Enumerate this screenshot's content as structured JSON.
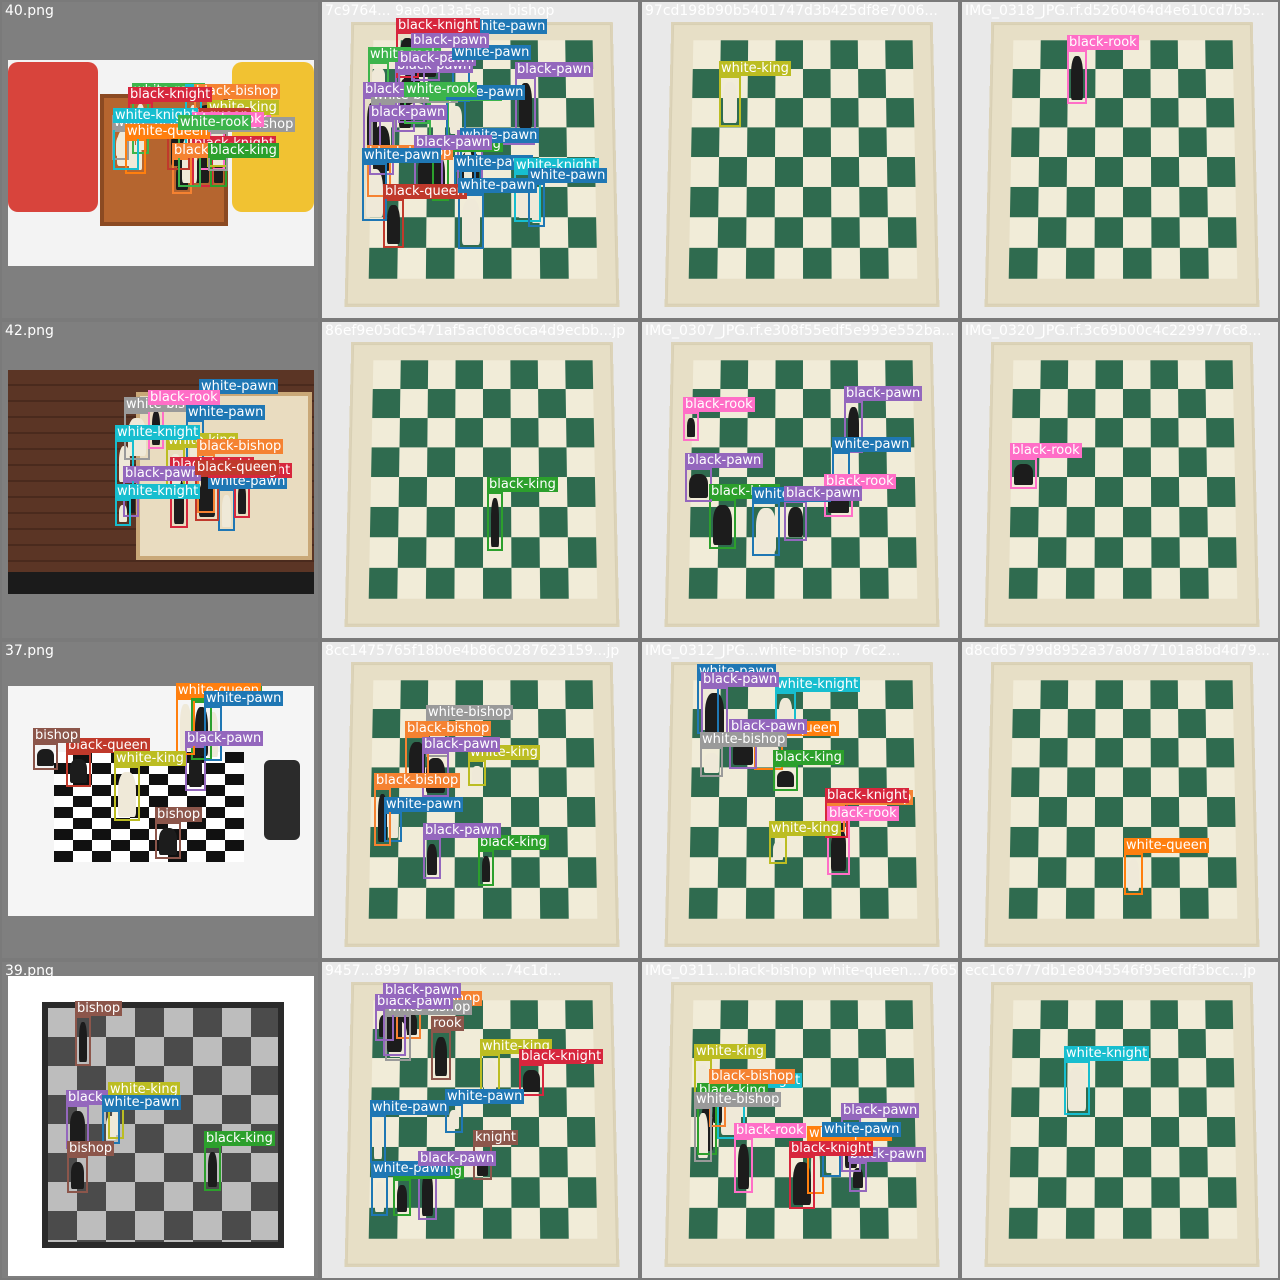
{
  "tiles": [
    {
      "title": "40.png",
      "kind": "photo-kids"
    },
    {
      "title": "7c9764... 9ae0c13a5ea... bishop",
      "kind": "board"
    },
    {
      "title": "97cd198b90b5401747d3b425df8e7006...",
      "kind": "board"
    },
    {
      "title": "IMG_0318_JPG.rf.d5260464d4e610cd7b5...",
      "kind": "board"
    },
    {
      "title": "42.png",
      "kind": "photo-wood"
    },
    {
      "title": "86ef9e05dc5471af5acf08c6ca4d9ecbb...jp",
      "kind": "board"
    },
    {
      "title": "IMG_0307_JPG.rf.e308f55edf5e993e552ba...",
      "kind": "board"
    },
    {
      "title": "IMG_0320_JPG.rf.3c69b00c4c2299776c8...",
      "kind": "board"
    },
    {
      "title": "37.png",
      "kind": "photo-getty"
    },
    {
      "title": "8cc1475765f18b0e4b86c0287623159...jp",
      "kind": "board"
    },
    {
      "title": "IMG_0312_JPG...white-bishop 76c2...",
      "kind": "board"
    },
    {
      "title": "d8cd65799d8952a37a0877101a8bd4d79...",
      "kind": "board"
    },
    {
      "title": "39.png",
      "kind": "photo-white"
    },
    {
      "title": "9457...8997 black-rook ...74c1d...",
      "kind": "board"
    },
    {
      "title": "IMG_0311...black-bishop white-queen...7665...",
      "kind": "board"
    },
    {
      "title": "ecc1c6777db1e8045546f95ecfdf3bcc...jp",
      "kind": "board"
    }
  ],
  "colors": {
    "black-rook": "#ff6ec7",
    "white-rook": "#3cb44b",
    "black-knight": "#d7263d",
    "white-knight": "#17becf",
    "black-bishop": "#f58231",
    "white-bishop": "#9a9a9a",
    "black-king": "#2ca02c",
    "white-king": "#bcbd22",
    "black-queen": "#c0392b",
    "white-queen": "#ff7f0e",
    "black-pawn": "#9467bd",
    "white-pawn": "#1f77b4"
  },
  "detections": [
    [
      [
        "black-rook"
      ],
      [
        "white-rook"
      ],
      [
        "black-knight"
      ],
      [
        "white-knight"
      ],
      [
        "black-bishop"
      ],
      [
        "white-bishop"
      ],
      [
        "black-king"
      ],
      [
        "white-king"
      ],
      [
        "black-queen"
      ],
      [
        "white-queen"
      ],
      [
        "black-bishop"
      ],
      [
        "white-bishop"
      ],
      [
        "black-knight"
      ],
      [
        "white-knight"
      ],
      [
        "black-rook"
      ],
      [
        "white-rook"
      ]
    ],
    [
      [
        "white-bishop"
      ],
      [
        "white-pawn"
      ],
      [
        "white-rook"
      ],
      [
        "black-pawn"
      ],
      [
        "white-pawn"
      ],
      [
        "black-pawn"
      ],
      [
        "black-king"
      ],
      [
        "white-knight"
      ],
      [
        "black-bishop"
      ],
      [
        "black-pawn"
      ],
      [
        "white-pawn"
      ],
      [
        "black-queen"
      ],
      [
        "white-pawn"
      ],
      [
        "black-pawn"
      ],
      [
        "white-pawn"
      ],
      [
        "black-pawn"
      ],
      [
        "white-rook"
      ],
      [
        "black-knight"
      ],
      [
        "white-pawn"
      ],
      [
        "black-pawn"
      ],
      [
        "white-pawn"
      ],
      [
        "black-pawn"
      ],
      [
        "white-rook"
      ],
      [
        "white-pawn"
      ],
      [
        "black-pawn"
      ]
    ],
    [
      [
        "white-king"
      ]
    ],
    [
      [
        "black-rook"
      ]
    ],
    [
      [
        "black-knight"
      ],
      [
        "white-king"
      ],
      [
        "black-pawn"
      ],
      [
        "white-bishop"
      ],
      [
        "white-knight"
      ],
      [
        "white-pawn"
      ],
      [
        "white-pawn"
      ],
      [
        "black-knight"
      ],
      [
        "black-rook"
      ],
      [
        "white-knight"
      ],
      [
        "white-pawn"
      ],
      [
        "black-queen"
      ],
      [
        "black-bishop"
      ]
    ],
    [
      [
        "black-king"
      ]
    ],
    [
      [
        "black-rook"
      ],
      [
        "black-king"
      ],
      [
        "white-pawn"
      ],
      [
        "black-rook"
      ],
      [
        "black-pawn"
      ],
      [
        "black-pawn"
      ],
      [
        "white-pawn"
      ],
      [
        "black-pawn"
      ]
    ],
    [
      [
        "black-rook"
      ]
    ],
    [
      [
        "black-queen"
      ],
      [
        "black-king"
      ],
      [
        "bishop"
      ],
      [
        "black-pawn"
      ],
      [
        "white-queen"
      ],
      [
        "white-king"
      ],
      [
        "white-pawn"
      ],
      [
        "bishop"
      ]
    ],
    [
      [
        "white-bishop"
      ],
      [
        "white-pawn"
      ],
      [
        "black-bishop"
      ],
      [
        "black-king"
      ],
      [
        "white-king"
      ],
      [
        "black-pawn"
      ],
      [
        "black-pawn"
      ],
      [
        "black-bishop"
      ]
    ],
    [
      [
        "white-knight"
      ],
      [
        "white-queen"
      ],
      [
        "black-rook"
      ],
      [
        "black-king"
      ],
      [
        "white-king"
      ],
      [
        "black-pawn"
      ],
      [
        "black-bishop"
      ],
      [
        "white-pawn"
      ],
      [
        "black-pawn"
      ],
      [
        "white-bishop"
      ],
      [
        "black-knight"
      ]
    ],
    [
      [
        "white-queen"
      ]
    ],
    [
      [
        "black-king"
      ],
      [
        "black-pawn"
      ],
      [
        "bishop"
      ],
      [
        "white-king"
      ],
      [
        "white-pawn"
      ],
      [
        "bishop"
      ]
    ],
    [
      [
        "white-pawn"
      ],
      [
        "rook"
      ],
      [
        "white-king"
      ],
      [
        "black-bishop"
      ],
      [
        "black-king"
      ],
      [
        "white-pawn"
      ],
      [
        "black-pawn"
      ],
      [
        "white-bishop"
      ],
      [
        "white-pawn"
      ],
      [
        "black-pawn"
      ],
      [
        "black-knight"
      ],
      [
        "knight"
      ],
      [
        "black-pawn"
      ]
    ],
    [
      [
        "white-knight"
      ],
      [
        "white-queen"
      ],
      [
        "black-rook"
      ],
      [
        "black-king"
      ],
      [
        "white-king"
      ],
      [
        "black-pawn"
      ],
      [
        "white-pawn"
      ],
      [
        "black-bishop"
      ],
      [
        "black-pawn"
      ],
      [
        "white-bishop"
      ],
      [
        "black-knight"
      ]
    ],
    [
      [
        "white-knight"
      ]
    ]
  ]
}
